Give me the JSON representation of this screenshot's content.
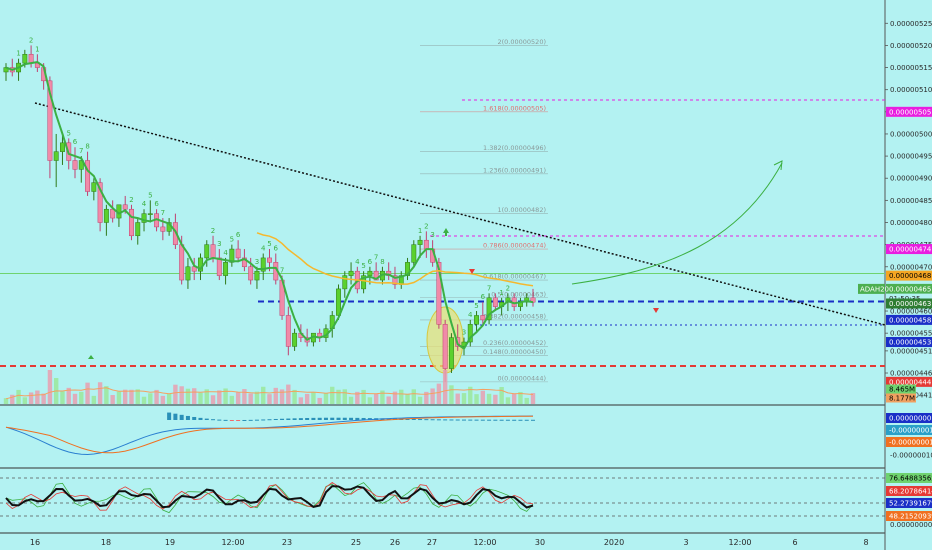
{
  "chart_data": {
    "type": "candlestick",
    "symbol_label": "ADAH20",
    "x_labels": [
      "16",
      "18",
      "19",
      "12:00",
      "23",
      "25",
      "26",
      "27",
      "12:00",
      "30",
      "2020",
      "3",
      "12:00",
      "6",
      "8"
    ],
    "price_ticks": [
      "0.00000525",
      "0.00000520",
      "0.00000515",
      "0.00000510",
      "0.00000505",
      "0.00000500",
      "0.00000495",
      "0.00000490",
      "0.00000485",
      "0.00000480",
      "0.00000475",
      "0.00000470",
      "0.00000465",
      "0.00000460",
      "0.00000455",
      "0.00000451",
      "0.00000446",
      "0.00000441"
    ],
    "fib_levels": [
      {
        "label": "2(0.00000520)",
        "value": 520,
        "color": "#8a9a9a"
      },
      {
        "label": "1.618(0.00000505)",
        "value": 505,
        "color": "#e07070"
      },
      {
        "label": "1.382(0.00000496)",
        "value": 496,
        "color": "#8a9a9a"
      },
      {
        "label": "1.236(0.00000491)",
        "value": 491,
        "color": "#8a9a9a"
      },
      {
        "label": "1(0.00000482)",
        "value": 482,
        "color": "#8a9a9a"
      },
      {
        "label": "0.786(0.00000474)",
        "value": 474,
        "color": "#e07070"
      },
      {
        "label": "0.618(0.00000467)",
        "value": 467,
        "color": "#8a9a9a"
      },
      {
        "label": "0.5(0.00000463)",
        "value": 463,
        "color": "#8a9a9a"
      },
      {
        "label": "0.382(0.00000458)",
        "value": 458,
        "color": "#8a9a9a"
      },
      {
        "label": "0.236(0.00000452)",
        "value": 452,
        "color": "#8a9a9a"
      },
      {
        "label": "0.148(0.00000450)",
        "value": 450,
        "color": "#8a9a9a"
      },
      {
        "label": "0(0.00000444)",
        "value": 444,
        "color": "#8a9a9a"
      }
    ],
    "price_tags": [
      {
        "label": "0.00000505",
        "value": 505,
        "bg": "#e91ee0",
        "fg": "#ffffff"
      },
      {
        "label": "0.00000474",
        "value": 474,
        "bg": "#e91ee0",
        "fg": "#ffffff"
      },
      {
        "label": "0.00000468",
        "value": 468,
        "bg": "#f5a623",
        "fg": "#000000"
      },
      {
        "label": "0.00000465",
        "value": 465,
        "bg": "#4caf50",
        "fg": "#ffffff"
      },
      {
        "label": "01:50:35",
        "value": 462.8,
        "bg": "#b3f2f2",
        "fg": "#2a2a2a"
      },
      {
        "label": "0.00000463",
        "value": 461.7,
        "bg": "#2e7d32",
        "fg": "#ffffff"
      },
      {
        "label": "0.00000458",
        "value": 458,
        "bg": "#1a2fc7",
        "fg": "#ffffff"
      },
      {
        "label": "0.00000453",
        "value": 453,
        "bg": "#1a2fc7",
        "fg": "#ffffff"
      },
      {
        "label": "0.00000444",
        "value": 444,
        "bg": "#e53935",
        "fg": "#ffffff"
      }
    ],
    "volume_tags": [
      {
        "label": "8.465M",
        "bg": "#6fd36f",
        "fg": "#000000"
      },
      {
        "label": "8.177M",
        "bg": "#f0a060",
        "fg": "#000000"
      }
    ],
    "macd_tags": [
      {
        "label": "0.00000000",
        "bg": "#1a2fc7",
        "fg": "#ffffff"
      },
      {
        "label": "-0.00000001",
        "bg": "#2aa0c8",
        "fg": "#ffffff"
      },
      {
        "label": "-0.00000001",
        "bg": "#f07020",
        "fg": "#ffffff"
      }
    ],
    "macd_ticks": [
      "0.00000000",
      "-0.00000010"
    ],
    "rsi_tags": [
      {
        "label": "76.64883562",
        "bg": "#6fd36f",
        "fg": "#000000"
      },
      {
        "label": "68.20786414",
        "bg": "#e53935",
        "fg": "#ffffff"
      },
      {
        "label": "52.27391679",
        "bg": "#1a2fc7",
        "fg": "#ffffff"
      },
      {
        "label": "48.21520939",
        "bg": "#f07020",
        "fg": "#ffffff"
      }
    ],
    "rsi_ticks": [
      "0.00000000"
    ],
    "price_ylim": [
      439,
      528
    ],
    "candles": [
      [
        514,
        516,
        512,
        515
      ],
      [
        515,
        517,
        513,
        514
      ],
      [
        514,
        517,
        512,
        516
      ],
      [
        516,
        519,
        515,
        518
      ],
      [
        518,
        520,
        515,
        516
      ],
      [
        516,
        518,
        514,
        515
      ],
      [
        515,
        516,
        510,
        512
      ],
      [
        512,
        513,
        490,
        494
      ],
      [
        494,
        500,
        488,
        496
      ],
      [
        496,
        500,
        493,
        498
      ],
      [
        498,
        499,
        492,
        494
      ],
      [
        494,
        497,
        490,
        492
      ],
      [
        492,
        495,
        489,
        494
      ],
      [
        494,
        496,
        486,
        487
      ],
      [
        487,
        490,
        485,
        489
      ],
      [
        489,
        490,
        478,
        480
      ],
      [
        480,
        484,
        477,
        483
      ],
      [
        483,
        485,
        480,
        481
      ],
      [
        481,
        484,
        479,
        484
      ],
      [
        484,
        486,
        482,
        483
      ],
      [
        483,
        484,
        476,
        477
      ],
      [
        477,
        481,
        475,
        480
      ],
      [
        480,
        483,
        478,
        482
      ],
      [
        482,
        485,
        480,
        482
      ],
      [
        482,
        483,
        478,
        479
      ],
      [
        479,
        481,
        476,
        478
      ],
      [
        478,
        481,
        477,
        480
      ],
      [
        480,
        482,
        474,
        475
      ],
      [
        475,
        477,
        466,
        467
      ],
      [
        467,
        472,
        465,
        470
      ],
      [
        470,
        472,
        467,
        469
      ],
      [
        469,
        473,
        467,
        472
      ],
      [
        472,
        476,
        470,
        475
      ],
      [
        475,
        477,
        471,
        472
      ],
      [
        472,
        474,
        467,
        468
      ],
      [
        468,
        472,
        466,
        471
      ],
      [
        471,
        475,
        470,
        474
      ],
      [
        474,
        476,
        471,
        472
      ],
      [
        472,
        474,
        469,
        470
      ],
      [
        470,
        472,
        466,
        467
      ],
      [
        467,
        470,
        465,
        469
      ],
      [
        469,
        473,
        467,
        472
      ],
      [
        472,
        474,
        469,
        471
      ],
      [
        471,
        473,
        466,
        467
      ],
      [
        467,
        468,
        458,
        459
      ],
      [
        459,
        461,
        450,
        452
      ],
      [
        452,
        456,
        451,
        455
      ],
      [
        455,
        457,
        453,
        454
      ],
      [
        454,
        456,
        452,
        453
      ],
      [
        453,
        455,
        452,
        455
      ],
      [
        455,
        456,
        453,
        454
      ],
      [
        454,
        457,
        453,
        456
      ],
      [
        456,
        460,
        454,
        459
      ],
      [
        459,
        466,
        458,
        465
      ],
      [
        465,
        469,
        463,
        468
      ],
      [
        468,
        471,
        466,
        469
      ],
      [
        469,
        470,
        464,
        465
      ],
      [
        465,
        469,
        464,
        468
      ],
      [
        468,
        470,
        466,
        469
      ],
      [
        469,
        471,
        467,
        467
      ],
      [
        467,
        470,
        466,
        469
      ],
      [
        469,
        471,
        467,
        468
      ],
      [
        468,
        470,
        465,
        466
      ],
      [
        466,
        469,
        465,
        468
      ],
      [
        468,
        472,
        467,
        471
      ],
      [
        471,
        476,
        470,
        475
      ],
      [
        475,
        477,
        472,
        476
      ],
      [
        476,
        478,
        472,
        474
      ],
      [
        474,
        476,
        470,
        471
      ],
      [
        471,
        472,
        456,
        457
      ],
      [
        457,
        458,
        444,
        447
      ],
      [
        447,
        455,
        446,
        454
      ],
      [
        454,
        457,
        451,
        452
      ],
      [
        452,
        454,
        450,
        453
      ],
      [
        453,
        458,
        452,
        457
      ],
      [
        457,
        460,
        455,
        459
      ],
      [
        459,
        462,
        457,
        458
      ],
      [
        458,
        464,
        457,
        463
      ],
      [
        463,
        464,
        460,
        461
      ],
      [
        461,
        463,
        459,
        462
      ],
      [
        462,
        464,
        460,
        463
      ],
      [
        463,
        464,
        460,
        461
      ],
      [
        461,
        463,
        460,
        462
      ],
      [
        462,
        464,
        461,
        463
      ],
      [
        463,
        465,
        461,
        462
      ]
    ]
  }
}
